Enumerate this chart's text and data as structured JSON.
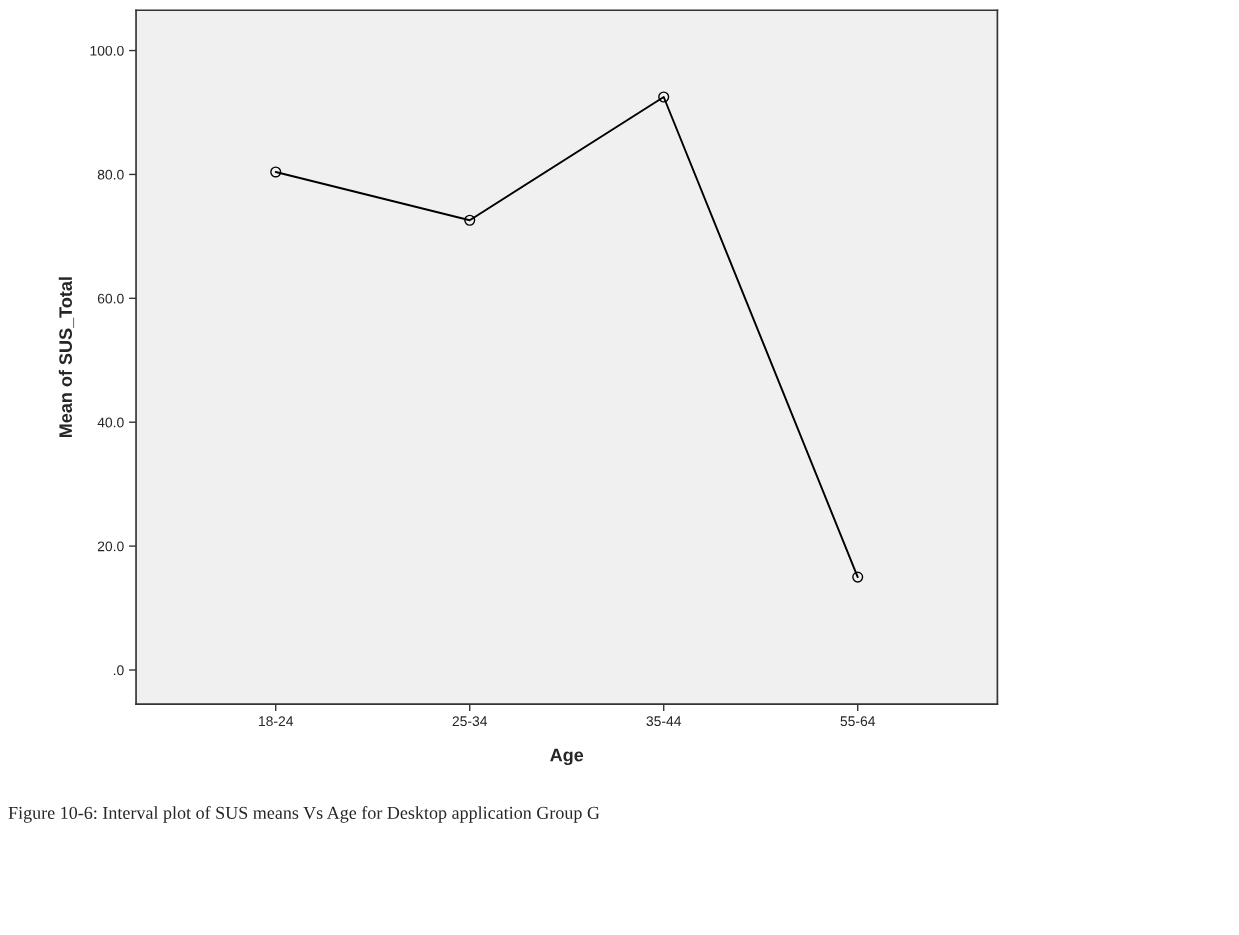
{
  "chart_data": {
    "type": "line",
    "xlabel": "Age",
    "ylabel": "Mean of SUS_Total",
    "categories": [
      "18-24",
      "25-34",
      "35-44",
      "55-64"
    ],
    "series": [
      {
        "color": "#000000",
        "values": [
          80.4,
          72.6,
          92.5,
          15.0
        ]
      }
    ],
    "ylim": [
      -5.5,
      106.5
    ],
    "yticks": [
      {
        "value": 0,
        "label": ".0"
      },
      {
        "value": 20,
        "label": "20.0"
      },
      {
        "value": 40,
        "label": "40.0"
      },
      {
        "value": 60,
        "label": "60.0"
      },
      {
        "value": 80,
        "label": "80.0"
      },
      {
        "value": 100,
        "label": "100.0"
      }
    ],
    "marker": "circle",
    "line_style": "solid",
    "grid": false,
    "legend": false,
    "annotations": [
      "Figure 10-6: Interval plot of SUS means Vs Age for Desktop application Group G"
    ]
  }
}
